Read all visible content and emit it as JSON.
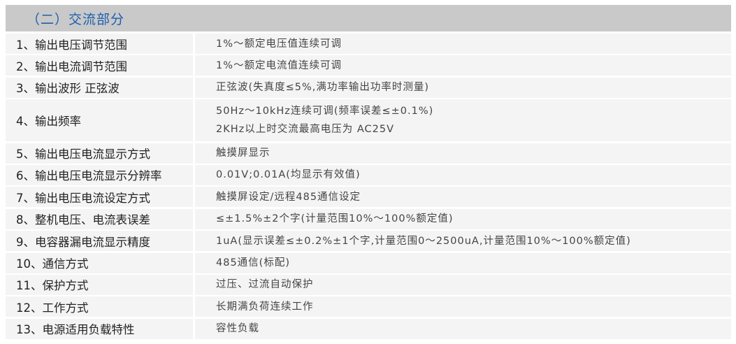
{
  "section_title": "（二）交流部分",
  "rows": [
    {
      "label": "1、输出电压调节范围",
      "value": [
        "1%～额定电压值连续可调"
      ]
    },
    {
      "label": "2、输出电流调节范围",
      "value": [
        "1%～额定电流值连续可调"
      ]
    },
    {
      "label": "3、输出波形 正弦波",
      "value": [
        "正弦波(失真度≤5%,满功率输出功率时测量)"
      ]
    },
    {
      "label": "4、输出频率",
      "value": [
        "50Hz～10kHz连续可调(频率误差≤±0.1%)",
        "2KHz以上时交流最高电压为 AC25V"
      ]
    },
    {
      "label": "5、输出电压电流显示方式",
      "value": [
        "触摸屏显示"
      ]
    },
    {
      "label": "6、输出电压电流显示分辨率",
      "value": [
        "0.01V;0.01A(均显示有效值)"
      ]
    },
    {
      "label": "7、输出电压电流设定方式",
      "value": [
        "触摸屏设定/远程485通信设定"
      ]
    },
    {
      "label": "8、整机电压、电流表误差",
      "value": [
        "≤±1.5%±2个字(计量范围10%～100%额定值)"
      ]
    },
    {
      "label": "9、电容器漏电流显示精度",
      "value": [
        "1uA(显示误差≤±0.2%±1个字,计量范围0～2500uA,计量范围10%～100%额定值)"
      ]
    },
    {
      "label": "10、通信方式",
      "value": [
        "485通信(标配)"
      ]
    },
    {
      "label": "11、保护方式",
      "value": [
        "过压、过流自动保护"
      ]
    },
    {
      "label": "12、工作方式",
      "value": [
        "长期满负荷连续工作"
      ]
    },
    {
      "label": "13、电源适用负载特性",
      "value": [
        "容性负载"
      ]
    }
  ],
  "colors": {
    "header_bg": "#c9c9c9",
    "title": "#1d5fae",
    "row_bg": "#f4f4f4"
  }
}
